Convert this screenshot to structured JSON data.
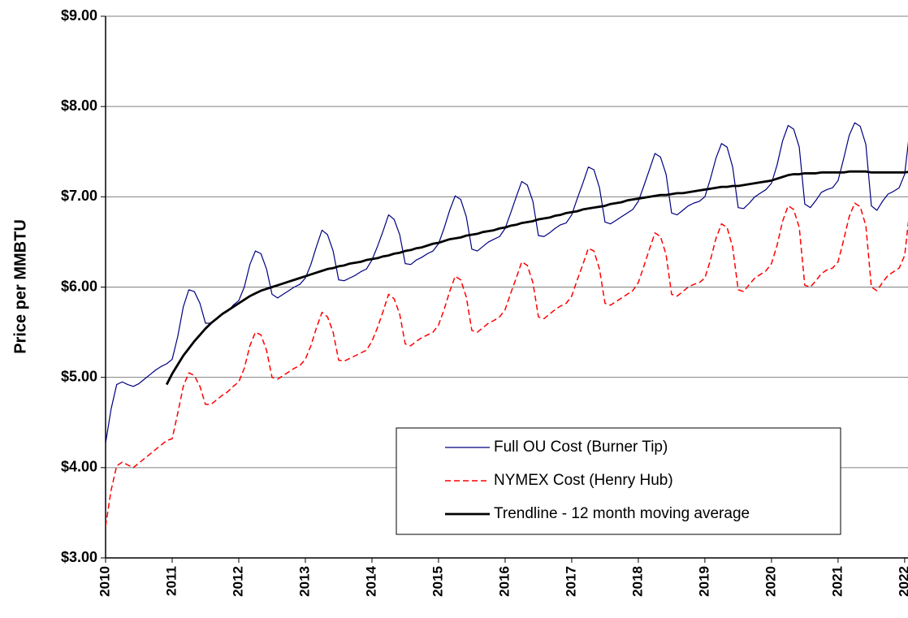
{
  "chart_data": {
    "type": "line",
    "y_label": "Price per MMBTU",
    "x": [
      2010,
      2010.083,
      2010.167,
      2010.25,
      2010.333,
      2010.417,
      2010.5,
      2010.583,
      2010.667,
      2010.75,
      2010.833,
      2010.917,
      2011,
      2011.083,
      2011.167,
      2011.25,
      2011.333,
      2011.417,
      2011.5,
      2011.583,
      2011.667,
      2011.75,
      2011.833,
      2011.917,
      2012,
      2012.083,
      2012.167,
      2012.25,
      2012.333,
      2012.417,
      2012.5,
      2012.583,
      2012.667,
      2012.75,
      2012.833,
      2012.917,
      2013,
      2013.083,
      2013.167,
      2013.25,
      2013.333,
      2013.417,
      2013.5,
      2013.583,
      2013.667,
      2013.75,
      2013.833,
      2013.917,
      2014,
      2014.083,
      2014.167,
      2014.25,
      2014.333,
      2014.417,
      2014.5,
      2014.583,
      2014.667,
      2014.75,
      2014.833,
      2014.917,
      2015,
      2015.083,
      2015.167,
      2015.25,
      2015.333,
      2015.417,
      2015.5,
      2015.583,
      2015.667,
      2015.75,
      2015.833,
      2015.917,
      2016,
      2016.083,
      2016.167,
      2016.25,
      2016.333,
      2016.417,
      2016.5,
      2016.583,
      2016.667,
      2016.75,
      2016.833,
      2016.917,
      2017,
      2017.083,
      2017.167,
      2017.25,
      2017.333,
      2017.417,
      2017.5,
      2017.583,
      2017.667,
      2017.75,
      2017.833,
      2017.917,
      2018,
      2018.083,
      2018.167,
      2018.25,
      2018.333,
      2018.417,
      2018.5,
      2018.583,
      2018.667,
      2018.75,
      2018.833,
      2018.917,
      2019,
      2019.083,
      2019.167,
      2019.25,
      2019.333,
      2019.417,
      2019.5,
      2019.583,
      2019.667,
      2019.75,
      2019.833,
      2019.917,
      2020,
      2020.083,
      2020.167,
      2020.25,
      2020.333,
      2020.417,
      2020.5,
      2020.583,
      2020.667,
      2020.75,
      2020.833,
      2020.917,
      2021,
      2021.083,
      2021.167,
      2021.25,
      2021.333,
      2021.417,
      2021.5,
      2021.583,
      2021.667,
      2021.75,
      2021.833,
      2021.917,
      2022,
      2022.083
    ],
    "series": [
      {
        "name": "Full OU Cost (Burner Tip)",
        "color": "#000080",
        "line_style": "solid",
        "values": [
          4.27,
          4.65,
          4.92,
          4.95,
          4.92,
          4.9,
          4.93,
          4.98,
          5.03,
          5.08,
          5.12,
          5.15,
          5.2,
          5.45,
          5.78,
          5.97,
          5.95,
          5.82,
          5.6,
          5.6,
          5.65,
          5.7,
          5.73,
          5.8,
          5.85,
          6.0,
          6.25,
          6.4,
          6.37,
          6.2,
          5.92,
          5.88,
          5.92,
          5.96,
          6.0,
          6.03,
          6.1,
          6.25,
          6.45,
          6.63,
          6.58,
          6.4,
          6.08,
          6.07,
          6.1,
          6.13,
          6.17,
          6.2,
          6.3,
          6.45,
          6.62,
          6.8,
          6.75,
          6.58,
          6.26,
          6.25,
          6.3,
          6.33,
          6.37,
          6.4,
          6.48,
          6.65,
          6.85,
          7.01,
          6.97,
          6.78,
          6.42,
          6.4,
          6.45,
          6.5,
          6.53,
          6.56,
          6.65,
          6.82,
          7.0,
          7.17,
          7.13,
          6.95,
          6.57,
          6.56,
          6.6,
          6.65,
          6.69,
          6.71,
          6.8,
          6.98,
          7.15,
          7.33,
          7.3,
          7.1,
          6.72,
          6.7,
          6.74,
          6.78,
          6.82,
          6.86,
          6.95,
          7.12,
          7.3,
          7.48,
          7.44,
          7.25,
          6.82,
          6.8,
          6.85,
          6.9,
          6.93,
          6.95,
          7.0,
          7.2,
          7.43,
          7.59,
          7.55,
          7.33,
          6.88,
          6.87,
          6.93,
          7.0,
          7.04,
          7.08,
          7.15,
          7.35,
          7.62,
          7.79,
          7.75,
          7.55,
          6.92,
          6.88,
          6.96,
          7.05,
          7.08,
          7.1,
          7.18,
          7.42,
          7.68,
          7.82,
          7.78,
          7.58,
          6.9,
          6.85,
          6.95,
          7.03,
          7.06,
          7.1,
          7.25,
          7.78
        ]
      },
      {
        "name": "NYMEX Cost (Henry Hub)",
        "color": "#ff0000",
        "line_style": "dashed",
        "values": [
          3.35,
          3.75,
          4.02,
          4.06,
          4.03,
          4.0,
          4.05,
          4.1,
          4.15,
          4.2,
          4.25,
          4.3,
          4.32,
          4.6,
          4.9,
          5.05,
          5.02,
          4.9,
          4.7,
          4.7,
          4.75,
          4.8,
          4.84,
          4.9,
          4.95,
          5.1,
          5.35,
          5.5,
          5.47,
          5.3,
          5.0,
          4.98,
          5.02,
          5.06,
          5.1,
          5.13,
          5.2,
          5.35,
          5.55,
          5.72,
          5.67,
          5.5,
          5.19,
          5.18,
          5.21,
          5.24,
          5.27,
          5.3,
          5.4,
          5.55,
          5.73,
          5.92,
          5.87,
          5.7,
          5.37,
          5.35,
          5.4,
          5.44,
          5.47,
          5.5,
          5.58,
          5.75,
          5.95,
          6.12,
          6.08,
          5.89,
          5.52,
          5.5,
          5.55,
          5.6,
          5.63,
          5.67,
          5.75,
          5.93,
          6.1,
          6.28,
          6.24,
          6.05,
          5.67,
          5.65,
          5.7,
          5.75,
          5.79,
          5.82,
          5.9,
          6.08,
          6.25,
          6.43,
          6.4,
          6.2,
          5.82,
          5.8,
          5.84,
          5.88,
          5.92,
          5.96,
          6.05,
          6.23,
          6.42,
          6.6,
          6.56,
          6.36,
          5.92,
          5.9,
          5.95,
          6.0,
          6.03,
          6.05,
          6.1,
          6.3,
          6.54,
          6.7,
          6.66,
          6.44,
          5.97,
          5.95,
          6.03,
          6.1,
          6.14,
          6.18,
          6.26,
          6.46,
          6.73,
          6.9,
          6.86,
          6.66,
          6.02,
          6.0,
          6.07,
          6.15,
          6.19,
          6.21,
          6.28,
          6.52,
          6.78,
          6.93,
          6.89,
          6.68,
          6.0,
          5.96,
          6.05,
          6.13,
          6.17,
          6.21,
          6.35,
          6.9
        ]
      },
      {
        "name": "Trendline - 12 month moving average",
        "color": "#000000",
        "line_style": "solid",
        "values": [
          null,
          null,
          null,
          null,
          null,
          null,
          null,
          null,
          null,
          null,
          null,
          4.92,
          5.04,
          5.14,
          5.24,
          5.32,
          5.4,
          5.47,
          5.54,
          5.6,
          5.65,
          5.7,
          5.74,
          5.78,
          5.82,
          5.86,
          5.9,
          5.93,
          5.96,
          5.98,
          6.0,
          6.02,
          6.04,
          6.06,
          6.08,
          6.1,
          6.12,
          6.14,
          6.16,
          6.18,
          6.2,
          6.21,
          6.23,
          6.24,
          6.26,
          6.27,
          6.28,
          6.3,
          6.31,
          6.32,
          6.34,
          6.35,
          6.37,
          6.38,
          6.4,
          6.41,
          6.43,
          6.44,
          6.46,
          6.48,
          6.49,
          6.51,
          6.53,
          6.54,
          6.55,
          6.57,
          6.58,
          6.59,
          6.61,
          6.62,
          6.63,
          6.65,
          6.66,
          6.68,
          6.69,
          6.71,
          6.72,
          6.73,
          6.75,
          6.76,
          6.77,
          6.79,
          6.8,
          6.82,
          6.83,
          6.84,
          6.86,
          6.87,
          6.88,
          6.89,
          6.9,
          6.92,
          6.93,
          6.94,
          6.96,
          6.97,
          6.98,
          6.99,
          7.0,
          7.01,
          7.02,
          7.02,
          7.03,
          7.04,
          7.04,
          7.05,
          7.06,
          7.07,
          7.08,
          7.09,
          7.1,
          7.11,
          7.11,
          7.12,
          7.12,
          7.13,
          7.14,
          7.15,
          7.16,
          7.17,
          7.18,
          7.2,
          7.22,
          7.24,
          7.25,
          7.25,
          7.26,
          7.26,
          7.26,
          7.27,
          7.27,
          7.27,
          7.27,
          7.27,
          7.28,
          7.28,
          7.28,
          7.28,
          7.27,
          7.27,
          7.27,
          7.27,
          7.27,
          7.27,
          7.27,
          7.28
        ]
      }
    ],
    "xlim": [
      2010,
      2022.05
    ],
    "xticks": [
      2010,
      2011,
      2012,
      2013,
      2014,
      2015,
      2016,
      2017,
      2018,
      2019,
      2020,
      2021,
      2022
    ],
    "ylim": [
      3,
      9
    ],
    "yticks": [
      {
        "value": 3,
        "label": "$3.00"
      },
      {
        "value": 4,
        "label": "$4.00"
      },
      {
        "value": 5,
        "label": "$5.00"
      },
      {
        "value": 6,
        "label": "$6.00"
      },
      {
        "value": 7,
        "label": "$7.00"
      },
      {
        "value": 8,
        "label": "$8.00"
      },
      {
        "value": 9,
        "label": "$9.00"
      }
    ],
    "grid": true,
    "legend": "lower right"
  }
}
